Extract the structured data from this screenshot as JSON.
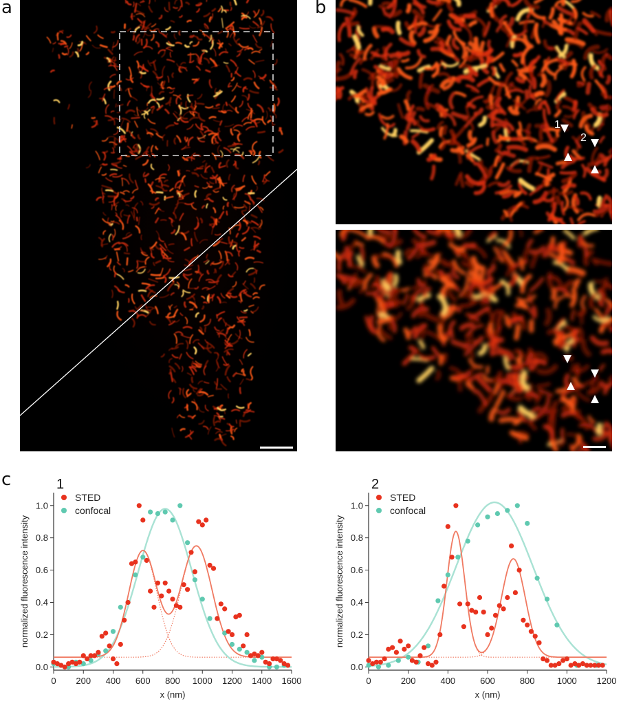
{
  "panels": {
    "a": {
      "letter": "a"
    },
    "b": {
      "letter": "b",
      "profile_labels": [
        "1",
        "2"
      ]
    },
    "c": {
      "letter": "c"
    }
  },
  "colors": {
    "sted": "#e8321e",
    "confocal": "#5fc9b0",
    "sted_fit": "#f07a62",
    "confocal_fit": "#a9e2d4",
    "mito_hot": "#ff4a10",
    "mito_core": "#ffd060"
  },
  "chart_data": [
    {
      "type": "scatter",
      "title": "1",
      "xlabel": "x (nm)",
      "ylabel": "normalized fluorescence intensity",
      "xlim": [
        0,
        1600
      ],
      "ylim": [
        0,
        1.0
      ],
      "xticks": [
        0,
        200,
        400,
        600,
        800,
        1000,
        1200,
        1400,
        1600
      ],
      "yticks": [
        0.0,
        0.2,
        0.4,
        0.6,
        0.8,
        1.0
      ],
      "legend": "top-left",
      "series": [
        {
          "name": "STED",
          "color": "#e8321e",
          "x": [
            0,
            25,
            50,
            75,
            100,
            125,
            150,
            175,
            200,
            225,
            250,
            275,
            300,
            325,
            350,
            375,
            400,
            425,
            450,
            475,
            500,
            525,
            550,
            575,
            600,
            625,
            650,
            675,
            700,
            725,
            750,
            775,
            800,
            825,
            850,
            875,
            900,
            925,
            950,
            975,
            1000,
            1025,
            1050,
            1075,
            1100,
            1125,
            1150,
            1175,
            1200,
            1225,
            1250,
            1275,
            1300,
            1325,
            1350,
            1375,
            1400,
            1425,
            1450,
            1475,
            1500,
            1525,
            1550,
            1575
          ],
          "y": [
            0.03,
            0.02,
            0.01,
            0.0,
            0.02,
            0.03,
            0.02,
            0.03,
            0.07,
            0.05,
            0.07,
            0.07,
            0.09,
            0.19,
            0.21,
            0.13,
            0.05,
            0.02,
            0.14,
            0.29,
            0.4,
            0.64,
            0.65,
            1.0,
            0.91,
            0.66,
            0.47,
            0.37,
            0.52,
            0.44,
            0.52,
            0.47,
            0.42,
            0.38,
            0.37,
            0.51,
            0.48,
            0.71,
            0.59,
            0.9,
            0.88,
            0.91,
            0.63,
            0.61,
            0.3,
            0.39,
            0.36,
            0.22,
            0.2,
            0.31,
            0.32,
            0.13,
            0.2,
            0.07,
            0.08,
            0.07,
            0.09,
            0.03,
            0.02,
            0.05,
            0.05,
            0.04,
            0.02,
            0.01
          ]
        },
        {
          "name": "confocal",
          "color": "#5fc9b0",
          "x": [
            0,
            50,
            100,
            150,
            200,
            250,
            300,
            350,
            400,
            450,
            500,
            550,
            600,
            650,
            700,
            750,
            800,
            850,
            900,
            950,
            1000,
            1050,
            1100,
            1150,
            1200,
            1250,
            1300,
            1350,
            1400,
            1450,
            1500,
            1550
          ],
          "y": [
            0.02,
            0.01,
            0.0,
            0.03,
            0.02,
            0.04,
            0.08,
            0.1,
            0.22,
            0.37,
            0.4,
            0.57,
            0.68,
            0.96,
            0.95,
            0.96,
            0.91,
            1.0,
            0.77,
            0.54,
            0.42,
            0.3,
            0.3,
            0.21,
            0.14,
            0.11,
            0.09,
            0.04,
            0.06,
            0.0,
            0.0,
            0.01
          ]
        }
      ],
      "fits": {
        "confocal": {
          "a": 0.98,
          "mu": 750,
          "sigma": 180,
          "baseline": 0
        },
        "sted": [
          {
            "a": 0.66,
            "mu": 600,
            "sigma": 95
          },
          {
            "a": 0.69,
            "mu": 960,
            "sigma": 105
          }
        ],
        "sted_baseline": 0.06
      }
    },
    {
      "type": "scatter",
      "title": "2",
      "xlabel": "x (nm)",
      "ylabel": "normalized fluorescence intensity",
      "xlim": [
        0,
        1200
      ],
      "ylim": [
        0,
        1.0
      ],
      "xticks": [
        0,
        200,
        400,
        600,
        800,
        1000,
        1200
      ],
      "yticks": [
        0.0,
        0.2,
        0.4,
        0.6,
        0.8,
        1.0
      ],
      "legend": "top-left",
      "series": [
        {
          "name": "STED",
          "color": "#e8321e",
          "x": [
            0,
            20,
            40,
            60,
            80,
            100,
            120,
            140,
            160,
            180,
            200,
            220,
            240,
            260,
            280,
            300,
            320,
            340,
            360,
            380,
            400,
            420,
            440,
            460,
            480,
            500,
            520,
            540,
            560,
            580,
            600,
            620,
            640,
            660,
            680,
            700,
            720,
            740,
            760,
            780,
            800,
            820,
            840,
            860,
            880,
            900,
            920,
            940,
            960,
            980,
            1000,
            1020,
            1040,
            1060,
            1080,
            1100,
            1120,
            1140,
            1160,
            1180
          ],
          "y": [
            0.04,
            0.02,
            0.03,
            0.03,
            0.05,
            0.11,
            0.12,
            0.09,
            0.16,
            0.11,
            0.13,
            0.04,
            0.03,
            0.07,
            0.12,
            0.02,
            0.01,
            0.03,
            0.2,
            0.5,
            0.87,
            0.68,
            1.0,
            0.39,
            0.25,
            0.39,
            0.35,
            0.34,
            0.43,
            0.34,
            0.2,
            0.24,
            0.32,
            0.38,
            0.36,
            0.43,
            0.75,
            0.46,
            0.6,
            0.29,
            0.26,
            0.22,
            0.19,
            0.15,
            0.05,
            0.04,
            0.01,
            0.01,
            0.02,
            0.04,
            0.05,
            0.01,
            0.02,
            0.01,
            0.02,
            0.01,
            0.01,
            0.01,
            0.01,
            0.01
          ]
        },
        {
          "name": "confocal",
          "color": "#5fc9b0",
          "x": [
            0,
            50,
            100,
            150,
            200,
            250,
            300,
            350,
            400,
            450,
            500,
            550,
            600,
            650,
            700,
            750,
            800,
            850,
            900,
            950,
            1000,
            1050,
            1100,
            1150
          ],
          "y": [
            0.01,
            0.0,
            0.01,
            0.04,
            0.06,
            0.03,
            0.13,
            0.41,
            0.57,
            0.68,
            0.78,
            0.88,
            0.93,
            0.95,
            0.97,
            1.0,
            0.89,
            0.55,
            0.42,
            0.26,
            0.05,
            0.01,
            0.01,
            0.01
          ]
        }
      ],
      "fits": {
        "confocal": {
          "a": 1.02,
          "mu": 635,
          "sigma": 195,
          "baseline": 0
        },
        "sted": [
          {
            "a": 0.78,
            "mu": 440,
            "sigma": 45
          },
          {
            "a": 0.61,
            "mu": 730,
            "sigma": 60
          }
        ],
        "sted_baseline": 0.06
      }
    }
  ]
}
